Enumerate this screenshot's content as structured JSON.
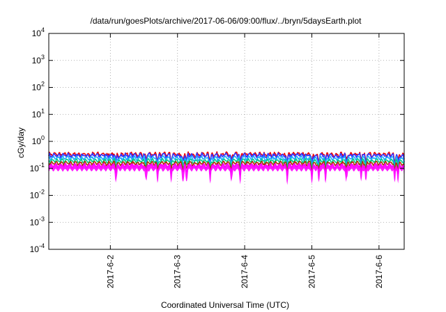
{
  "chart_data": {
    "type": "line",
    "title": "/data/run/goesPlots/archive/2017-06-06/09:00/flux/../bryn/5daysEarth.plot",
    "xlabel": "Coordinated Universal Time (UTC)",
    "ylabel": "cGy/day",
    "y_scale": "log",
    "ylim": [
      0.0001,
      10000
    ],
    "xlim": [
      "2017-06-01T02:00",
      "2017-06-06T09:00"
    ],
    "grid": true,
    "legend": "none",
    "y_ticks": [
      {
        "mantissa": "10",
        "exponent": "-4"
      },
      {
        "mantissa": "10",
        "exponent": "-3"
      },
      {
        "mantissa": "10",
        "exponent": "-2"
      },
      {
        "mantissa": "10",
        "exponent": "-1"
      },
      {
        "mantissa": "10",
        "exponent": "0"
      },
      {
        "mantissa": "10",
        "exponent": "1"
      },
      {
        "mantissa": "10",
        "exponent": "2"
      },
      {
        "mantissa": "10",
        "exponent": "3"
      },
      {
        "mantissa": "10",
        "exponent": "4"
      }
    ],
    "x_ticks": [
      "2017-6-2",
      "2017-6-3",
      "2017-6-4",
      "2017-6-5",
      "2017-6-6"
    ],
    "series": [
      {
        "color": "#ee0000",
        "base": 0.33,
        "amp": 0.25
      },
      {
        "color": "#3333ff",
        "base": 0.3,
        "amp": 0.26
      },
      {
        "color": "#1eaaff",
        "base": 0.24,
        "amp": 0.24
      },
      {
        "color": "#00cc88",
        "base": 0.19,
        "amp": 0.2
      },
      {
        "color": "#aa3300",
        "base": 0.155,
        "amp": 0.18
      },
      {
        "color": "#ff00ff",
        "base": 0.125,
        "amp": 0.18
      }
    ],
    "dip_days": [
      1.0,
      1.45,
      1.62,
      1.82,
      2.0,
      2.05,
      2.4,
      2.72,
      2.85,
      3.55,
      3.92,
      4.02,
      4.12,
      4.43,
      4.65,
      4.72,
      5.15,
      5.2,
      5.3
    ]
  }
}
